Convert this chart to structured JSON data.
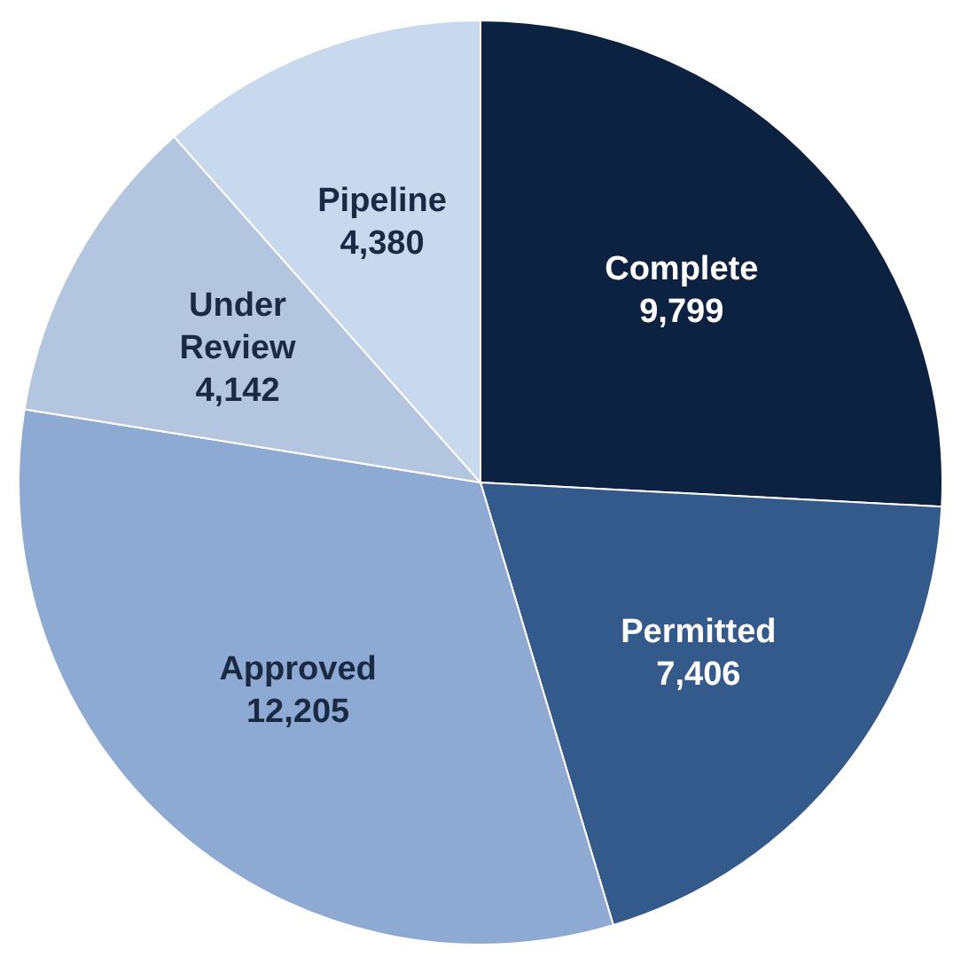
{
  "chart_data": {
    "type": "pie",
    "categories": [
      "Complete",
      "Permitted",
      "Approved",
      "Under Review",
      "Pipeline"
    ],
    "values": [
      9799,
      7406,
      12205,
      4142,
      4380
    ],
    "colors": [
      "#0d2240",
      "#345a8c",
      "#8eaad3",
      "#b4c6df",
      "#c8d9ee"
    ],
    "value_labels": [
      "9,799",
      "7,406",
      "12,205",
      "4,142",
      "4,380"
    ],
    "legend": false
  }
}
